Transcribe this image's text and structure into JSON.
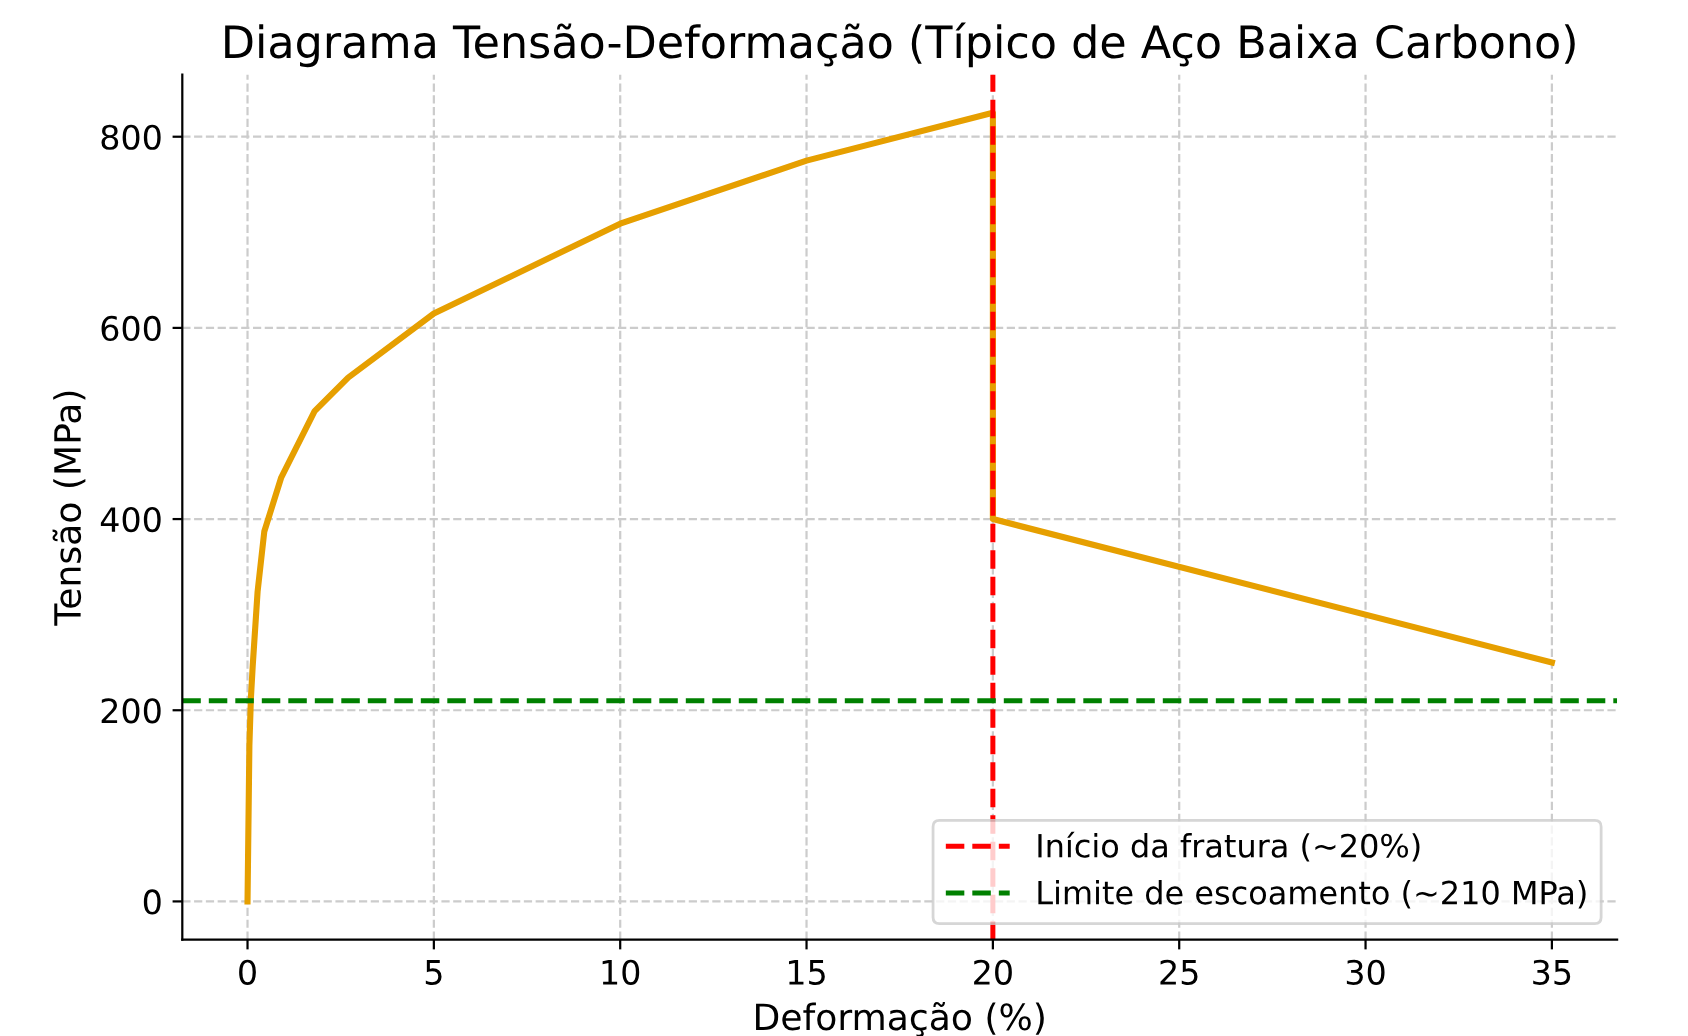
{
  "chart_data": {
    "type": "line",
    "title": "Diagrama Tensão-Deformação (Típico de Aço Baixa Carbono)",
    "xlabel": "Deformação (%)",
    "ylabel": "Tensão (MPa)",
    "series": [
      {
        "color": "#e69f00",
        "x": [
          0,
          0.05,
          0.09,
          0.14,
          0.27,
          0.45,
          0.9,
          1.8,
          2.7,
          5,
          10,
          15,
          20,
          20,
          35
        ],
        "values": [
          0,
          163,
          212,
          247,
          324,
          387,
          443,
          513,
          548,
          615,
          709,
          775,
          825,
          400,
          250
        ]
      }
    ],
    "ref_lines": [
      {
        "axis": "x",
        "value": 20,
        "label": "Início da fratura (~20%)",
        "color": "#ff0000",
        "line_style": "dashed"
      },
      {
        "axis": "y",
        "value": 210,
        "label": "Limite de escoamento (~210 MPa)",
        "color": "#008000",
        "line_style": "dashed"
      }
    ],
    "xlim": [
      -1.75,
      36.75
    ],
    "ylim": [
      -40,
      865
    ],
    "xticks": [
      0,
      5,
      10,
      15,
      20,
      25,
      30,
      35
    ],
    "yticks": [
      0,
      200,
      400,
      600,
      800
    ],
    "grid": true,
    "legend": "bottom right"
  }
}
